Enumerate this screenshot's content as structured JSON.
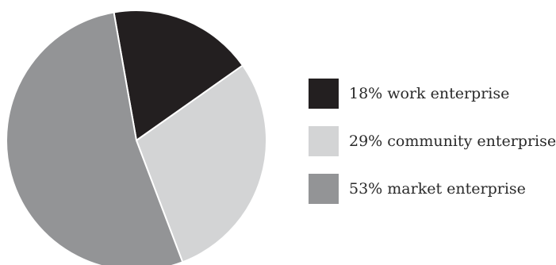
{
  "chart_data": {
    "type": "pie",
    "title": "",
    "start_angle_deg": -10,
    "direction": "clockwise",
    "legend_position": "right",
    "slices": [
      {
        "label": "18% work enterprise",
        "value": 18,
        "color": "#231f20"
      },
      {
        "label": "29% community enterprise",
        "value": 29,
        "color": "#d3d4d5"
      },
      {
        "label": "53% market enterprise",
        "value": 53,
        "color": "#939496"
      }
    ]
  }
}
